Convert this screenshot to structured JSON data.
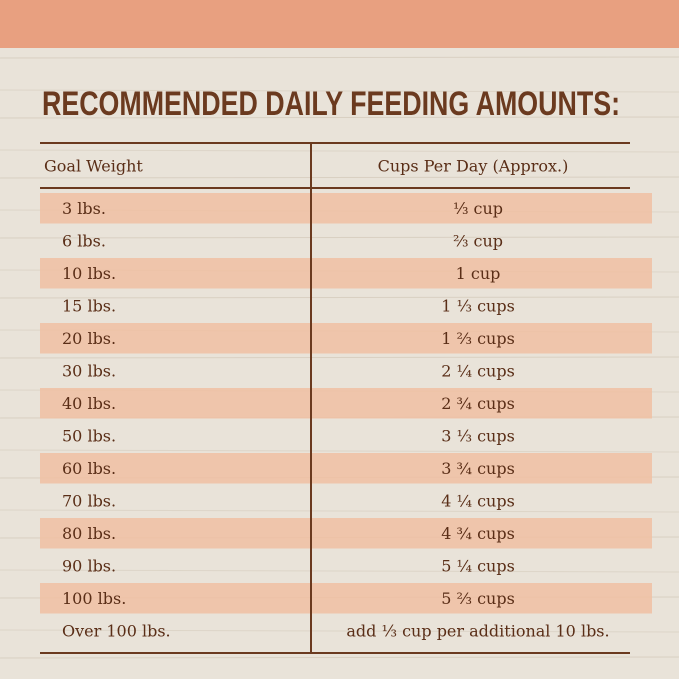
{
  "header": {
    "title": "RECOMMENDED DAILY FEEDING AMOUNTS:"
  },
  "table": {
    "columns": [
      "Goal Weight",
      "Cups Per Day (Approx.)"
    ],
    "rows": [
      [
        "3 lbs.",
        "⅓ cup"
      ],
      [
        "6 lbs.",
        "⅔ cup"
      ],
      [
        "10 lbs.",
        "1 cup"
      ],
      [
        "15 lbs.",
        "1 ⅓ cups"
      ],
      [
        "20 lbs.",
        "1 ⅔ cups"
      ],
      [
        "30 lbs.",
        "2 ¼ cups"
      ],
      [
        "40 lbs.",
        "2 ¾ cups"
      ],
      [
        "50 lbs.",
        "3 ⅓ cups"
      ],
      [
        "60 lbs.",
        "3 ¾ cups"
      ],
      [
        "70 lbs.",
        "4 ¼ cups"
      ],
      [
        "80 lbs.",
        "4 ¾ cups"
      ],
      [
        "90 lbs.",
        "5 ¼ cups"
      ],
      [
        "100 lbs.",
        "5 ⅔ cups"
      ],
      [
        "Over 100 lbs.",
        "add ⅓ cup per additional 10 lbs."
      ]
    ]
  }
}
